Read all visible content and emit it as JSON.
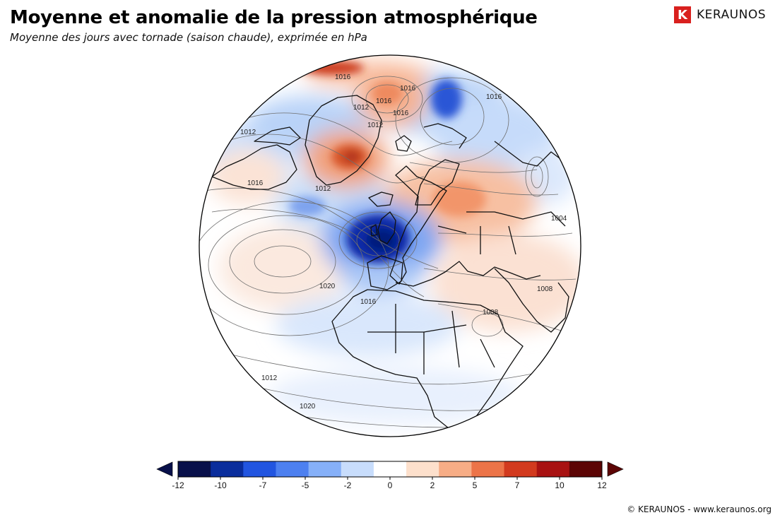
{
  "header": {
    "title": "Moyenne et anomalie de la pression atmosphérique",
    "subtitle": "Moyenne des jours avec tornade (saison chaude), exprimée en hPa"
  },
  "brand": {
    "logo_letter": "K",
    "name": "KERAUNOS",
    "color": "#d9201e"
  },
  "map": {
    "projection": "orthographic",
    "contour_labels": [
      "1016",
      "1016",
      "1016",
      "1012",
      "1012",
      "1012",
      "1012",
      "1016",
      "1016",
      "1016",
      "1020",
      "1016",
      "1008",
      "1008",
      "1004",
      "1012",
      "1020"
    ],
    "anomalies": [
      {
        "region": "Greenland",
        "sign": "positive"
      },
      {
        "region": "Barents Sea",
        "sign": "negative"
      },
      {
        "region": "British Isles / Bay of Biscay",
        "sign": "negative"
      },
      {
        "region": "Eastern Europe",
        "sign": "positive"
      },
      {
        "region": "Svalbard",
        "sign": "positive"
      }
    ]
  },
  "colorbar": {
    "ticks": [
      "-12",
      "-10",
      "-7",
      "-5",
      "-2",
      "0",
      "2",
      "5",
      "7",
      "10",
      "12"
    ],
    "colors": [
      "#08104a",
      "#0a2d9c",
      "#2255e0",
      "#4d80f0",
      "#86b0f8",
      "#c8ddfc",
      "#ffffff",
      "#fde0cc",
      "#f7ad86",
      "#ec7448",
      "#d23a1e",
      "#a81212",
      "#5c0505"
    ]
  },
  "footer": {
    "copyright": "© KERAUNOS - www.keraunos.org"
  }
}
